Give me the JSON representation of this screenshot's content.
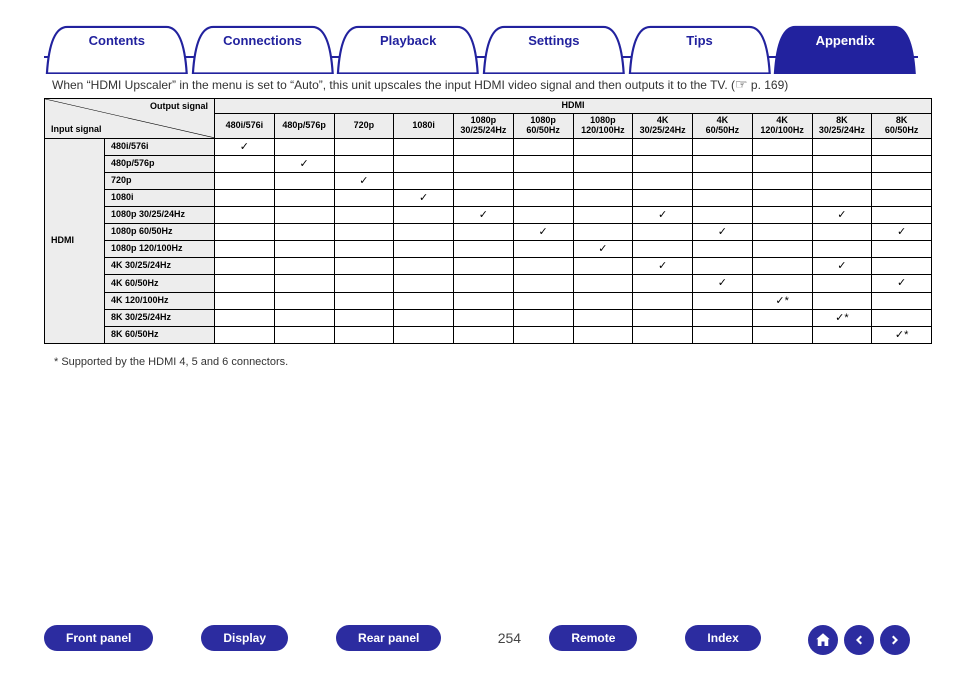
{
  "tabs": [
    {
      "id": "contents",
      "label": "Contents",
      "active": false
    },
    {
      "id": "connections",
      "label": "Connections",
      "active": false
    },
    {
      "id": "playback",
      "label": "Playback",
      "active": false
    },
    {
      "id": "settings",
      "label": "Settings",
      "active": false
    },
    {
      "id": "tips",
      "label": "Tips",
      "active": false
    },
    {
      "id": "appendix",
      "label": "Appendix",
      "active": true
    }
  ],
  "intro_text": "When “HDMI Upscaler” in the menu is set to “Auto”, this unit upscales the input HDMI video signal and then outputs it to the TV. (",
  "page_ref": " p. 169)",
  "diag_out": "Output signal",
  "diag_in": "Input signal",
  "hdmi_header": "HDMI",
  "row_group_label": "HDMI",
  "out_cols": [
    "480i/576i",
    "480p/576p",
    "720p",
    "1080i",
    "1080p\n30/25/24Hz",
    "1080p\n60/50Hz",
    "1080p\n120/100Hz",
    "4K\n30/25/24Hz",
    "4K\n60/50Hz",
    "4K\n120/100Hz",
    "8K\n30/25/24Hz",
    "8K\n60/50Hz"
  ],
  "rows": [
    {
      "label": "480i/576i",
      "cells": [
        "✓",
        "",
        "",
        "",
        "",
        "",
        "",
        "",
        "",
        "",
        "",
        ""
      ]
    },
    {
      "label": "480p/576p",
      "cells": [
        "",
        "✓",
        "",
        "",
        "",
        "",
        "",
        "",
        "",
        "",
        "",
        ""
      ]
    },
    {
      "label": "720p",
      "cells": [
        "",
        "",
        "✓",
        "",
        "",
        "",
        "",
        "",
        "",
        "",
        "",
        ""
      ]
    },
    {
      "label": "1080i",
      "cells": [
        "",
        "",
        "",
        "✓",
        "",
        "",
        "",
        "",
        "",
        "",
        "",
        ""
      ]
    },
    {
      "label": "1080p 30/25/24Hz",
      "cells": [
        "",
        "",
        "",
        "",
        "✓",
        "",
        "",
        "✓",
        "",
        "",
        "✓",
        ""
      ]
    },
    {
      "label": "1080p 60/50Hz",
      "cells": [
        "",
        "",
        "",
        "",
        "",
        "✓",
        "",
        "",
        "✓",
        "",
        "",
        "✓"
      ]
    },
    {
      "label": "1080p 120/100Hz",
      "cells": [
        "",
        "",
        "",
        "",
        "",
        "",
        "✓",
        "",
        "",
        "",
        "",
        ""
      ]
    },
    {
      "label": "4K 30/25/24Hz",
      "cells": [
        "",
        "",
        "",
        "",
        "",
        "",
        "",
        "✓",
        "",
        "",
        "✓",
        ""
      ]
    },
    {
      "label": "4K 60/50Hz",
      "cells": [
        "",
        "",
        "",
        "",
        "",
        "",
        "",
        "",
        "✓",
        "",
        "",
        "✓"
      ]
    },
    {
      "label": "4K 120/100Hz",
      "cells": [
        "",
        "",
        "",
        "",
        "",
        "",
        "",
        "",
        "",
        "✓*",
        "",
        ""
      ]
    },
    {
      "label": "8K 30/25/24Hz",
      "cells": [
        "",
        "",
        "",
        "",
        "",
        "",
        "",
        "",
        "",
        "",
        "✓*",
        ""
      ]
    },
    {
      "label": "8K 60/50Hz",
      "cells": [
        "",
        "",
        "",
        "",
        "",
        "",
        "",
        "",
        "",
        "",
        "",
        "✓*"
      ]
    }
  ],
  "footnote_marker": "*",
  "footnote_text": "Supported by the HDMI 4, 5 and 6 connectors.",
  "bottom_buttons": [
    {
      "id": "front-panel",
      "label": "Front panel"
    },
    {
      "id": "display",
      "label": "Display"
    },
    {
      "id": "rear-panel",
      "label": "Rear panel"
    }
  ],
  "page_number": "254",
  "bottom_buttons2": [
    {
      "id": "remote",
      "label": "Remote"
    },
    {
      "id": "index",
      "label": "Index"
    }
  ],
  "colors": {
    "accent": "#22229e",
    "pill": "#2c2ca0",
    "th_bg": "#ededed"
  }
}
